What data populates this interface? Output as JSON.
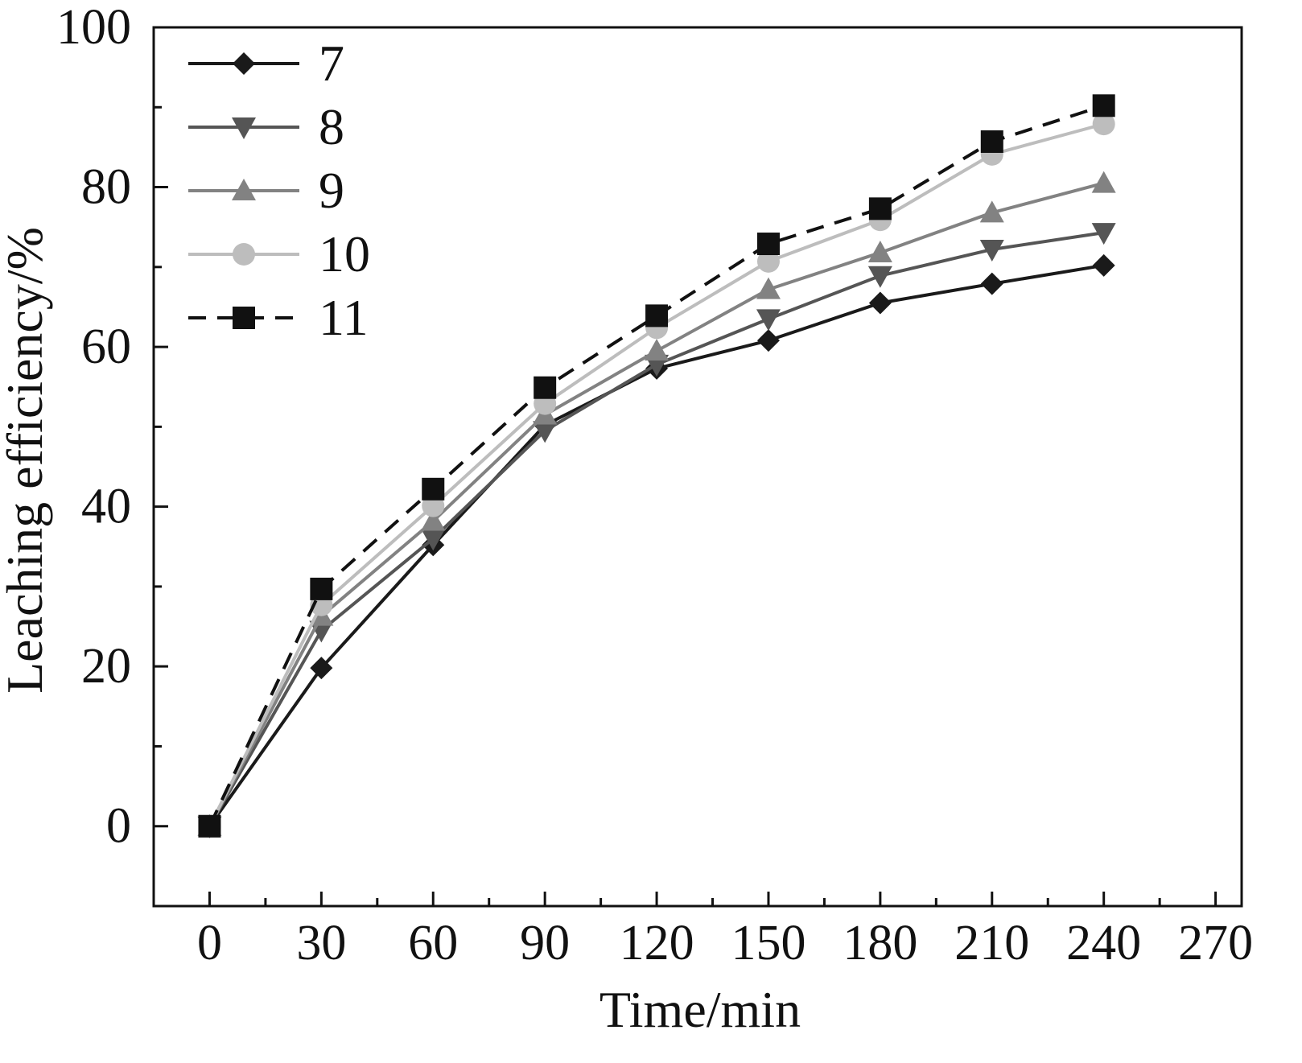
{
  "chart_data": {
    "type": "line",
    "title": "",
    "xlabel": "Time/min",
    "ylabel": "Leaching efficiency/%",
    "xlim": [
      -15,
      277
    ],
    "ylim": [
      -10,
      100
    ],
    "x_ticks": [
      "0",
      "30",
      "60",
      "90",
      "120",
      "150",
      "180",
      "210",
      "240",
      "270"
    ],
    "y_ticks": [
      "0",
      "20",
      "40",
      "60",
      "80",
      "100"
    ],
    "x": [
      0,
      30,
      60,
      90,
      120,
      150,
      180,
      210,
      240
    ],
    "grid": false,
    "legend_position": "top-left",
    "series": [
      {
        "name": "7",
        "marker": "diamond",
        "color": "#1a1a1a",
        "dash": "solid",
        "values": [
          0,
          19.8,
          35.2,
          50.2,
          57.3,
          60.8,
          65.5,
          67.9,
          70.2
        ]
      },
      {
        "name": "8",
        "marker": "triangle-down",
        "color": "#555555",
        "dash": "solid",
        "values": [
          0,
          24.5,
          36.0,
          49.5,
          57.8,
          63.5,
          68.9,
          72.2,
          74.3
        ]
      },
      {
        "name": "9",
        "marker": "triangle-up",
        "color": "#828282",
        "dash": "solid",
        "values": [
          0,
          26.3,
          38.2,
          51.5,
          59.5,
          67.2,
          71.8,
          76.8,
          80.5
        ]
      },
      {
        "name": "10",
        "marker": "circle",
        "color": "#bdbdbd",
        "dash": "solid",
        "values": [
          0,
          27.7,
          40.1,
          52.9,
          62.4,
          70.7,
          75.9,
          84.1,
          87.9
        ]
      },
      {
        "name": "11",
        "marker": "square",
        "color": "#111111",
        "dash": "dashed",
        "values": [
          0,
          29.7,
          42.2,
          54.9,
          63.9,
          72.9,
          77.3,
          85.7,
          90.2
        ]
      }
    ]
  }
}
